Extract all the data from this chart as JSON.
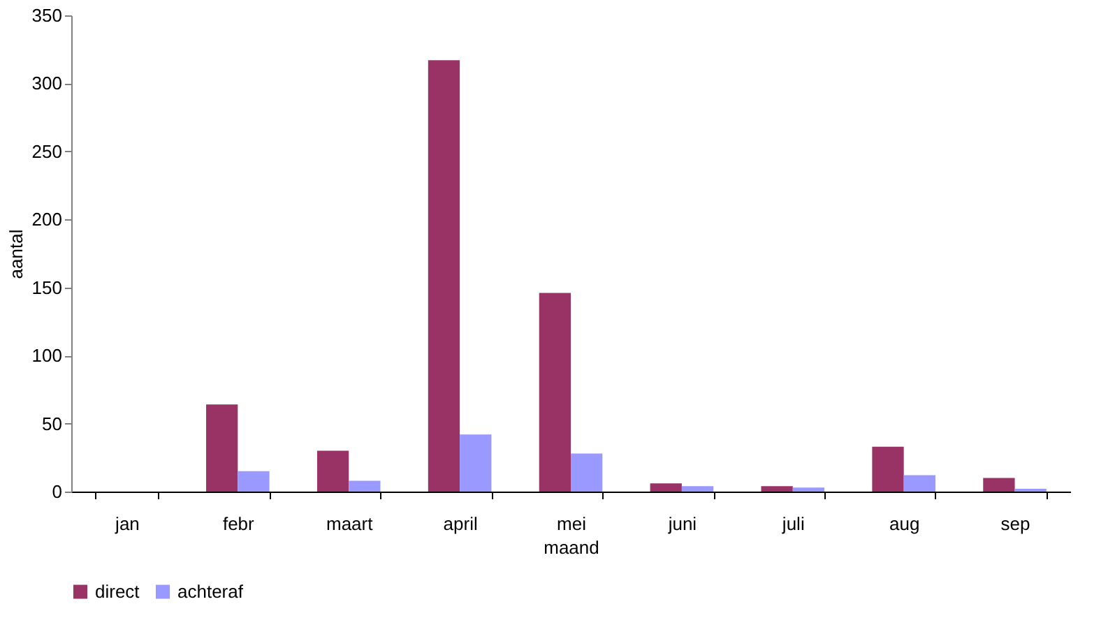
{
  "chart_data": {
    "type": "bar",
    "xlabel": "maand",
    "ylabel": "aantal",
    "categories": [
      "jan",
      "febr",
      "maart",
      "april",
      "mei",
      "juni",
      "juli",
      "aug",
      "sep"
    ],
    "series": [
      {
        "name": "direct",
        "color": "#993366",
        "values": [
          0,
          64,
          30,
          317,
          146,
          6,
          4,
          33,
          10
        ]
      },
      {
        "name": "achteraf",
        "color": "#9999ff",
        "values": [
          0,
          15,
          8,
          42,
          28,
          4,
          3,
          12,
          2
        ]
      }
    ],
    "ylim": [
      0,
      350
    ],
    "yticks": [
      0,
      50,
      100,
      150,
      200,
      250,
      300,
      350
    ],
    "grid": false,
    "legend": "bottom"
  }
}
